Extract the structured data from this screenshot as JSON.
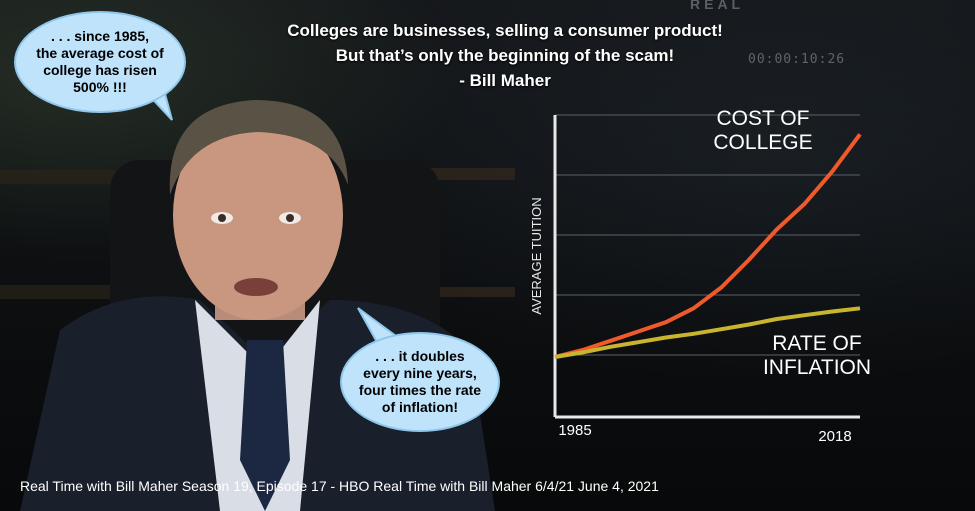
{
  "headline": {
    "line1": "Colleges are businesses, selling a consumer product!",
    "line2": "But that’s only the beginning of the scam!",
    "line3": "- Bill Maher"
  },
  "bubbles": {
    "top_left": ". . . since 1985,\nthe average cost of\ncollege has risen\n500% !!!",
    "center": ". . . it doubles\nevery nine years,\nfour times the rate\nof inflation!"
  },
  "overlay": {
    "timecode": "00:00:10:26",
    "brand": "REAL"
  },
  "caption": "Real Time with Bill Maher Season 19, Episode 17 - HBO Real Time with Bill Maher 6/4/21 June 4, 2021",
  "colors": {
    "bubble_fill": "#bfe3fb",
    "cost_line": "#f05a2a",
    "inflation_line": "#c9b52d",
    "axis": "#e8e8e8"
  },
  "chart_data": {
    "type": "line",
    "ylabel": "AVERAGE TUITION",
    "x_tick_labels": [
      "1985",
      "2018"
    ],
    "xlim": [
      1985,
      2018
    ],
    "grid": true,
    "series": [
      {
        "name": "COST OF COLLEGE",
        "x": [
          1985,
          1988,
          1991,
          1994,
          1997,
          2000,
          2003,
          2006,
          2009,
          2012,
          2015,
          2018
        ],
        "values": [
          100,
          115,
          135,
          155,
          175,
          205,
          250,
          310,
          375,
          430,
          500,
          580
        ]
      },
      {
        "name": "RATE OF INFLATION",
        "x": [
          1985,
          1988,
          1991,
          1994,
          1997,
          2000,
          2003,
          2006,
          2009,
          2012,
          2015,
          2018
        ],
        "values": [
          100,
          110,
          122,
          132,
          142,
          150,
          160,
          170,
          182,
          190,
          198,
          205
        ]
      }
    ]
  }
}
